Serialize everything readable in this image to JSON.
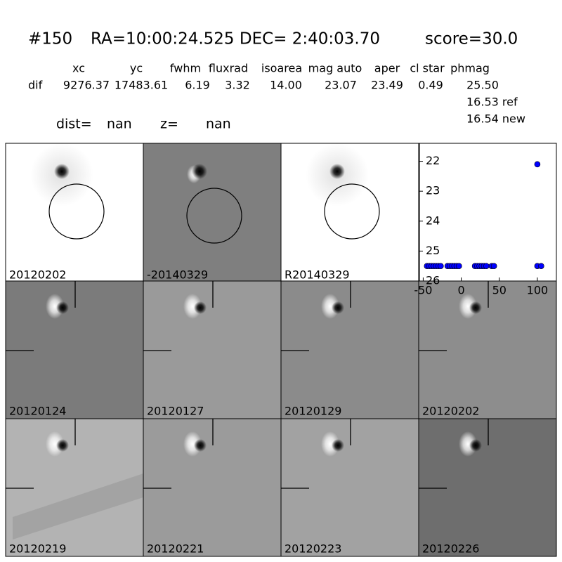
{
  "header": {
    "id": "#150",
    "coords": "RA=10:00:24.525 DEC= 2:40:03.70",
    "score": "score=30.0"
  },
  "table": {
    "columns": [
      "xc",
      "yc",
      "fwhm",
      "fluxrad",
      "isoarea",
      "mag auto",
      "aper",
      "cl star",
      "phmag"
    ],
    "row_label": "dif",
    "row": [
      "9276.37",
      "17483.61",
      "6.19",
      "3.32",
      "14.00",
      "23.07",
      "23.49",
      "0.49",
      "25.50"
    ],
    "extra": [
      "16.53 ref",
      "16.54 new"
    ]
  },
  "dist": {
    "label": "dist=",
    "value": "nan"
  },
  "z": {
    "label": "z=",
    "value": "nan"
  },
  "stamps": [
    {
      "label": "20120202"
    },
    {
      "label": "-20140329"
    },
    {
      "label": "R20140329"
    },
    {
      "label": "20120124"
    },
    {
      "label": "20120127"
    },
    {
      "label": "20120129"
    },
    {
      "label": "20120202",
      "color": "#ff0000"
    },
    {
      "label": "20120219"
    },
    {
      "label": "20120221"
    },
    {
      "label": "20120223"
    },
    {
      "label": "20120226"
    }
  ],
  "chart_data": {
    "type": "scatter",
    "color": "#0000ff",
    "x": [
      -45,
      -42,
      -39,
      -36,
      -33,
      -30,
      -27,
      -18,
      -15,
      -12,
      -9,
      -6,
      -3,
      18,
      21,
      24,
      27,
      30,
      33,
      40,
      43,
      100,
      100,
      105
    ],
    "values": [
      25.5,
      25.5,
      25.5,
      25.5,
      25.5,
      25.5,
      25.5,
      25.5,
      25.5,
      25.5,
      25.5,
      25.5,
      25.5,
      25.5,
      25.5,
      25.5,
      25.5,
      25.5,
      25.5,
      25.5,
      25.5,
      22.1,
      25.5,
      25.5
    ],
    "errors": [
      0.05,
      0.05,
      0.05,
      0.05,
      0.05,
      0.05,
      0.05,
      0.05,
      0.05,
      0.05,
      0.05,
      0.05,
      0.05,
      0.05,
      0.05,
      0.05,
      0.05,
      0.05,
      0.05,
      0.05,
      0.05,
      0.1,
      0.05,
      0.05
    ],
    "xlim": [
      -55,
      125
    ],
    "xticks": [
      -50,
      0,
      50,
      100
    ],
    "ylim": [
      26,
      21.4
    ],
    "yticks": [
      22,
      23,
      24,
      25,
      26
    ]
  }
}
